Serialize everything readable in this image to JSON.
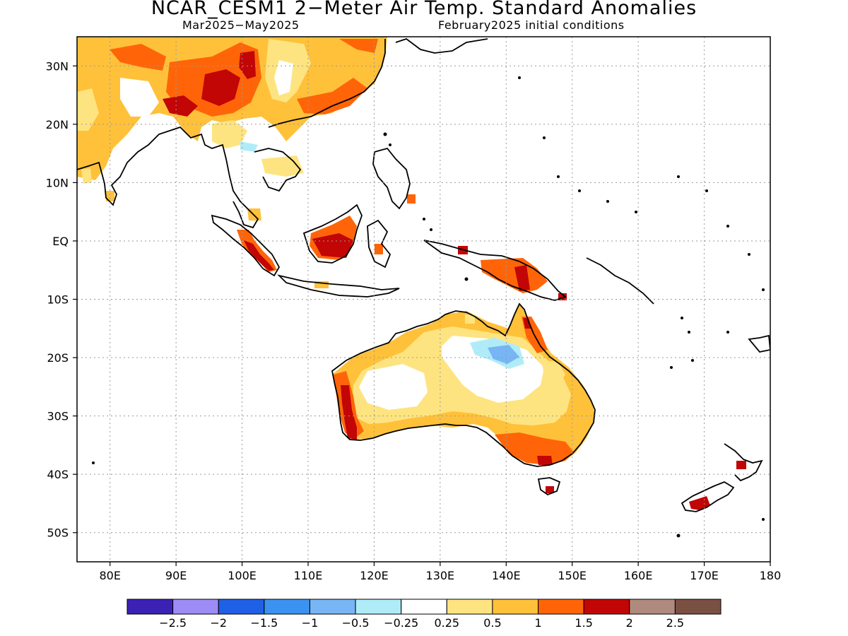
{
  "title": "NCAR_CESM1 2−Meter Air Temp. Standard Anomalies",
  "subtitle_left": "Mar2025−May2025",
  "subtitle_right": "February2025 initial conditions",
  "map": {
    "lon_range": [
      75,
      180
    ],
    "lat_range": [
      -55,
      35
    ],
    "lat_ticks": [
      {
        "value": 30,
        "label": "30N"
      },
      {
        "value": 20,
        "label": "20N"
      },
      {
        "value": 10,
        "label": "10N"
      },
      {
        "value": 0,
        "label": "EQ"
      },
      {
        "value": -10,
        "label": "10S"
      },
      {
        "value": -20,
        "label": "20S"
      },
      {
        "value": -30,
        "label": "30S"
      },
      {
        "value": -40,
        "label": "40S"
      },
      {
        "value": -50,
        "label": "50S"
      }
    ],
    "lon_ticks": [
      {
        "value": 80,
        "label": "80E"
      },
      {
        "value": 90,
        "label": "90E"
      },
      {
        "value": 100,
        "label": "100E"
      },
      {
        "value": 110,
        "label": "110E"
      },
      {
        "value": 120,
        "label": "120E"
      },
      {
        "value": 130,
        "label": "130E"
      },
      {
        "value": 140,
        "label": "140E"
      },
      {
        "value": 150,
        "label": "150E"
      },
      {
        "value": 160,
        "label": "160E"
      },
      {
        "value": 170,
        "label": "170E"
      },
      {
        "value": 180,
        "label": "180"
      }
    ],
    "grid": "dotted"
  },
  "colorbar": {
    "colors": [
      "#3b22b4",
      "#9d8cf5",
      "#1f60e6",
      "#3b92f0",
      "#78b5f5",
      "#b0ecf8",
      "#ffffff",
      "#fee480",
      "#ffc13a",
      "#ff6508",
      "#c20505",
      "#b08a7e",
      "#7a5043"
    ],
    "labels": [
      "−2.5",
      "−2",
      "−1.5",
      "−1",
      "−0.5",
      "−0.25",
      "0.25",
      "0.5",
      "1",
      "1.5",
      "2",
      "2.5"
    ]
  }
}
